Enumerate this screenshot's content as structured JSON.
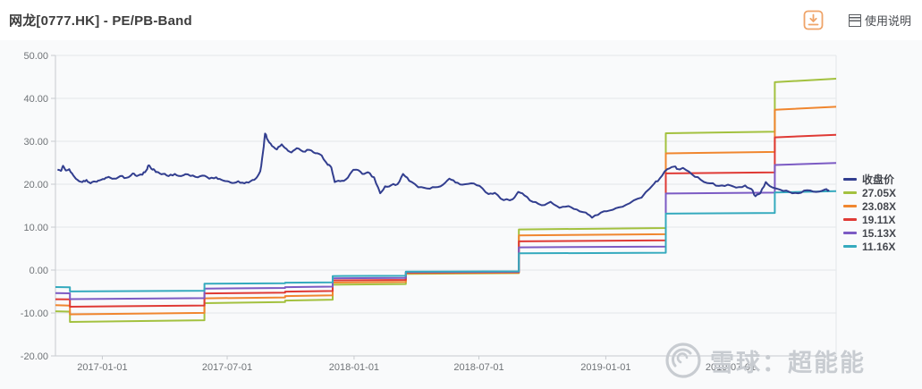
{
  "header": {
    "title": "网龙[0777.HK] - PE/PB-Band",
    "help_label": "使用说明",
    "download_icon_color": "#EFA469"
  },
  "watermark": {
    "text": "雪球：超能能",
    "color": "#C8CCD1"
  },
  "colors": {
    "grid": "#E4E7EA",
    "axis_line": "#C8CBCF",
    "axis_text": "#6F7377",
    "plot_background": "#F9FAFB",
    "legend_text": "#44474E"
  },
  "chart_data": {
    "type": "line",
    "title": "网龙[0777.HK] - PE/PB-Band",
    "grid": true,
    "legend_position": "right",
    "ylim": [
      -20,
      50
    ],
    "y_ticks": [
      50,
      40,
      30,
      20,
      10,
      0,
      -10,
      -20
    ],
    "y_tick_labels": [
      "50.00",
      "40.00",
      "30.00",
      "20.00",
      "10.00",
      "0.00",
      "-10.00",
      "-20.00"
    ],
    "x_range": [
      "2016-10-25",
      "2019-12-01"
    ],
    "x_ticks": [
      "2017-01-01",
      "2017-07-01",
      "2018-01-01",
      "2018-07-01",
      "2019-01-01",
      "2019-07-01"
    ],
    "price_series": {
      "name": "收盘价",
      "color": "#323E8F",
      "points": [
        [
          "2016-10-28",
          23.4
        ],
        [
          "2016-11-02",
          23.1
        ],
        [
          "2016-11-05",
          24.3
        ],
        [
          "2016-11-09",
          23.2
        ],
        [
          "2016-11-14",
          23.5
        ],
        [
          "2016-11-20",
          22.0
        ],
        [
          "2016-11-26",
          21.0
        ],
        [
          "2016-12-03",
          20.5
        ],
        [
          "2016-12-09",
          21.0
        ],
        [
          "2016-12-15",
          20.2
        ],
        [
          "2016-12-22",
          20.6
        ],
        [
          "2016-12-28",
          20.9
        ],
        [
          "2017-01-04",
          21.2
        ],
        [
          "2017-01-10",
          21.7
        ],
        [
          "2017-01-18",
          21.3
        ],
        [
          "2017-01-27",
          21.9
        ],
        [
          "2017-02-05",
          21.5
        ],
        [
          "2017-02-14",
          22.5
        ],
        [
          "2017-02-20",
          21.9
        ],
        [
          "2017-02-28",
          22.2
        ],
        [
          "2017-03-06",
          23.3
        ],
        [
          "2017-03-09",
          24.4
        ],
        [
          "2017-03-13",
          23.6
        ],
        [
          "2017-03-18",
          23.2
        ],
        [
          "2017-03-23",
          22.8
        ],
        [
          "2017-03-30",
          22.4
        ],
        [
          "2017-04-07",
          21.9
        ],
        [
          "2017-04-16",
          22.4
        ],
        [
          "2017-04-25",
          21.9
        ],
        [
          "2017-05-05",
          22.3
        ],
        [
          "2017-05-16",
          21.7
        ],
        [
          "2017-05-26",
          22.0
        ],
        [
          "2017-06-05",
          21.3
        ],
        [
          "2017-06-15",
          21.6
        ],
        [
          "2017-06-23",
          21.0
        ],
        [
          "2017-07-01",
          20.7
        ],
        [
          "2017-07-08",
          20.3
        ],
        [
          "2017-07-17",
          20.7
        ],
        [
          "2017-07-26",
          20.2
        ],
        [
          "2017-08-04",
          20.7
        ],
        [
          "2017-08-12",
          21.4
        ],
        [
          "2017-08-18",
          23.0
        ],
        [
          "2017-08-22",
          27.5
        ],
        [
          "2017-08-25",
          31.8
        ],
        [
          "2017-08-29",
          30.3
        ],
        [
          "2017-09-04",
          28.9
        ],
        [
          "2017-09-11",
          28.1
        ],
        [
          "2017-09-18",
          29.3
        ],
        [
          "2017-09-25",
          28.2
        ],
        [
          "2017-10-02",
          27.4
        ],
        [
          "2017-10-10",
          28.4
        ],
        [
          "2017-10-19",
          27.6
        ],
        [
          "2017-10-28",
          28.0
        ],
        [
          "2017-11-06",
          27.2
        ],
        [
          "2017-11-15",
          26.7
        ],
        [
          "2017-11-24",
          24.5
        ],
        [
          "2017-11-29",
          23.9
        ],
        [
          "2017-12-04",
          20.5
        ],
        [
          "2017-12-12",
          20.7
        ],
        [
          "2017-12-20",
          21.1
        ],
        [
          "2017-12-29",
          23.0
        ],
        [
          "2018-01-04",
          23.4
        ],
        [
          "2018-01-13",
          22.4
        ],
        [
          "2018-01-21",
          22.8
        ],
        [
          "2018-01-30",
          21.6
        ],
        [
          "2018-02-08",
          17.9
        ],
        [
          "2018-02-15",
          19.5
        ],
        [
          "2018-02-24",
          19.8
        ],
        [
          "2018-03-05",
          20.0
        ],
        [
          "2018-03-13",
          22.4
        ],
        [
          "2018-03-22",
          20.8
        ],
        [
          "2018-04-04",
          19.3
        ],
        [
          "2018-04-17",
          19.0
        ],
        [
          "2018-04-29",
          19.3
        ],
        [
          "2018-05-10",
          19.9
        ],
        [
          "2018-05-19",
          21.3
        ],
        [
          "2018-05-28",
          20.4
        ],
        [
          "2018-06-07",
          19.9
        ],
        [
          "2018-06-20",
          20.2
        ],
        [
          "2018-07-02",
          19.6
        ],
        [
          "2018-07-15",
          17.7
        ],
        [
          "2018-07-24",
          18.0
        ],
        [
          "2018-08-06",
          16.3
        ],
        [
          "2018-08-19",
          16.5
        ],
        [
          "2018-08-27",
          18.2
        ],
        [
          "2018-09-05",
          17.4
        ],
        [
          "2018-09-17",
          15.9
        ],
        [
          "2018-09-30",
          15.1
        ],
        [
          "2018-10-13",
          15.9
        ],
        [
          "2018-10-26",
          14.5
        ],
        [
          "2018-11-08",
          14.9
        ],
        [
          "2018-11-20",
          14.1
        ],
        [
          "2018-12-03",
          13.4
        ],
        [
          "2018-12-12",
          12.2
        ],
        [
          "2018-12-25",
          13.4
        ],
        [
          "2019-01-07",
          13.9
        ],
        [
          "2019-01-20",
          14.6
        ],
        [
          "2019-02-05",
          15.6
        ],
        [
          "2019-02-22",
          16.9
        ],
        [
          "2019-03-12",
          20.1
        ],
        [
          "2019-03-20",
          21.3
        ],
        [
          "2019-03-31",
          23.5
        ],
        [
          "2019-04-10",
          24.1
        ],
        [
          "2019-04-16",
          23.5
        ],
        [
          "2019-04-23",
          23.8
        ],
        [
          "2019-05-06",
          22.3
        ],
        [
          "2019-05-19",
          21.0
        ],
        [
          "2019-06-01",
          20.2
        ],
        [
          "2019-06-14",
          19.6
        ],
        [
          "2019-06-27",
          19.9
        ],
        [
          "2019-07-09",
          19.2
        ],
        [
          "2019-07-22",
          19.7
        ],
        [
          "2019-07-31",
          18.9
        ],
        [
          "2019-08-06",
          17.2
        ],
        [
          "2019-08-13",
          17.9
        ],
        [
          "2019-08-21",
          20.5
        ],
        [
          "2019-08-30",
          19.3
        ],
        [
          "2019-09-11",
          18.7
        ],
        [
          "2019-09-24",
          18.2
        ],
        [
          "2019-10-07",
          17.9
        ],
        [
          "2019-10-20",
          18.6
        ],
        [
          "2019-11-02",
          18.2
        ],
        [
          "2019-11-15",
          18.8
        ],
        [
          "2019-11-21",
          18.6
        ]
      ]
    },
    "pe_bands": {
      "note": "band value = multiple x eps; eps steps at report/estimate dates",
      "bands": [
        {
          "label": "27.05X",
          "multiple": 27.05,
          "color": "#A3C13F"
        },
        {
          "label": "23.08X",
          "multiple": 23.08,
          "color": "#F0862F"
        },
        {
          "label": "19.11X",
          "multiple": 19.11,
          "color": "#DF3A35"
        },
        {
          "label": "15.13X",
          "multiple": 15.13,
          "color": "#7C5BC4"
        },
        {
          "label": "11.16X",
          "multiple": 11.16,
          "color": "#35AABE"
        }
      ],
      "eps_segments": [
        {
          "start": "2016-10-25",
          "end": "2016-11-15",
          "eps_start": -0.355,
          "eps_end": -0.358
        },
        {
          "start": "2016-11-15",
          "end": "2017-05-29",
          "eps_start": -0.447,
          "eps_end": -0.432
        },
        {
          "start": "2017-05-29",
          "end": "2017-09-23",
          "eps_start": -0.285,
          "eps_end": -0.276
        },
        {
          "start": "2017-09-23",
          "end": "2017-12-01",
          "eps_start": -0.263,
          "eps_end": -0.255
        },
        {
          "start": "2017-12-01",
          "end": "2018-03-17",
          "eps_start": -0.126,
          "eps_end": -0.12
        },
        {
          "start": "2018-03-17",
          "end": "2018-08-28",
          "eps_start": -0.032,
          "eps_end": -0.026
        },
        {
          "start": "2018-08-28",
          "end": "2019-03-29",
          "eps_start": 0.35,
          "eps_end": 0.362
        },
        {
          "start": "2019-03-29",
          "end": "2019-09-03",
          "eps_start": 1.178,
          "eps_end": 1.192
        },
        {
          "start": "2019-09-03",
          "end": "2019-12-01",
          "eps_start": 1.618,
          "eps_end": 1.648
        }
      ]
    }
  }
}
